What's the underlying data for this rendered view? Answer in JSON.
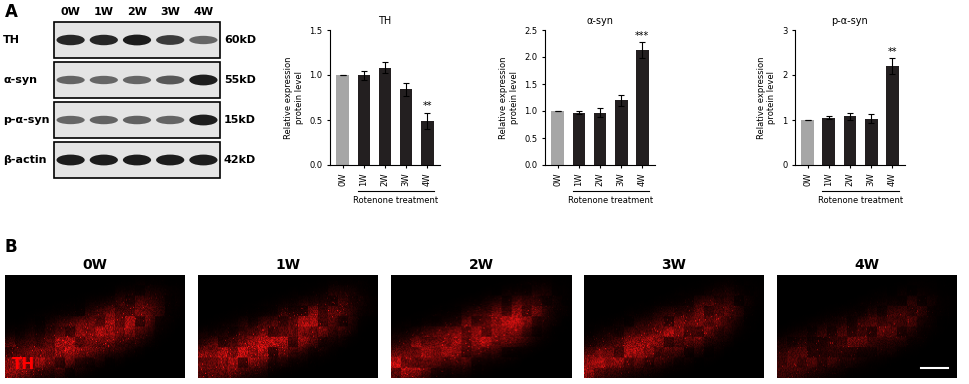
{
  "panel_labels": [
    "A",
    "B"
  ],
  "blot": {
    "lanes": [
      "0W",
      "1W",
      "2W",
      "3W",
      "4W"
    ],
    "rows": [
      {
        "label": "TH",
        "size": "60kD"
      },
      {
        "label": "α-syn",
        "size": "55kD"
      },
      {
        "label": "p-α-syn",
        "size": "15kD"
      },
      {
        "label": "β-actin",
        "size": "42kD"
      }
    ]
  },
  "chart_data": [
    {
      "type": "bar",
      "title": "TH",
      "categories": [
        "0W",
        "1W",
        "2W",
        "3W",
        "4W"
      ],
      "values": [
        1.0,
        1.0,
        1.08,
        0.84,
        0.49
      ],
      "errors": [
        0,
        0.05,
        0.06,
        0.07,
        0.09
      ],
      "colors": [
        "#a6a6a6",
        "#231f20",
        "#231f20",
        "#231f20",
        "#231f20"
      ],
      "ylabel": "Relative expression\nprotein level",
      "xlabel": "Rotenone treatment",
      "ylim": [
        0,
        1.5
      ],
      "yticks": [
        {
          "value": 0,
          "label": "0.0"
        },
        {
          "value": 0.5,
          "label": "0.5"
        },
        {
          "value": 1.0,
          "label": "1.0"
        },
        {
          "value": 1.5,
          "label": "1.5"
        }
      ],
      "annotations": [
        {
          "category": "4W",
          "text": "**"
        }
      ]
    },
    {
      "type": "bar",
      "title": "α-syn",
      "categories": [
        "0W",
        "1W",
        "2W",
        "3W",
        "4W"
      ],
      "values": [
        1.0,
        0.97,
        0.97,
        1.2,
        2.13
      ],
      "errors": [
        0,
        0.03,
        0.08,
        0.1,
        0.15
      ],
      "colors": [
        "#a6a6a6",
        "#231f20",
        "#231f20",
        "#231f20",
        "#231f20"
      ],
      "ylabel": "Relative expression\nprotein level",
      "xlabel": "Rotenone treatment",
      "ylim": [
        0,
        2.5
      ],
      "yticks": [
        {
          "value": 0,
          "label": "0.0"
        },
        {
          "value": 0.5,
          "label": "0.5"
        },
        {
          "value": 1.0,
          "label": "1.0"
        },
        {
          "value": 1.5,
          "label": "1.5"
        },
        {
          "value": 2.0,
          "label": "2.0"
        },
        {
          "value": 2.5,
          "label": "2.5"
        }
      ],
      "annotations": [
        {
          "category": "4W",
          "text": "***"
        }
      ]
    },
    {
      "type": "bar",
      "title": "p-α-syn",
      "categories": [
        "0W",
        "1W",
        "2W",
        "3W",
        "4W"
      ],
      "values": [
        1.0,
        1.05,
        1.08,
        1.03,
        2.2
      ],
      "errors": [
        0,
        0.03,
        0.07,
        0.1,
        0.18
      ],
      "colors": [
        "#a6a6a6",
        "#231f20",
        "#231f20",
        "#231f20",
        "#231f20"
      ],
      "ylabel": "Relative expression\nprotein level",
      "xlabel": "Rotenone treatment",
      "ylim": [
        0,
        3
      ],
      "yticks": [
        0,
        1,
        2,
        3
      ],
      "annotations": [
        {
          "category": "4W",
          "text": "**"
        }
      ]
    }
  ],
  "images": {
    "labels": [
      "0W",
      "1W",
      "2W",
      "3W",
      "4W"
    ],
    "stain": "TH"
  }
}
